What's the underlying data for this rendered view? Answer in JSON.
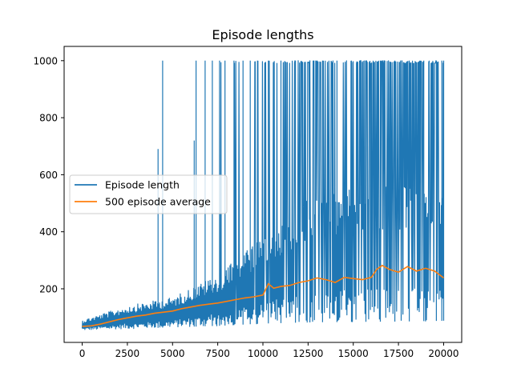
{
  "chart_data": {
    "type": "line",
    "title": "Episode lengths",
    "xlabel": "",
    "ylabel": "",
    "xlim": [
      -1000,
      21000
    ],
    "ylim": [
      12,
      1050
    ],
    "x_ticks": [
      0,
      2500,
      5000,
      7500,
      10000,
      12500,
      15000,
      17500,
      20000
    ],
    "y_ticks": [
      200,
      400,
      600,
      800,
      1000
    ],
    "grid": false,
    "legend_position": "center-left",
    "series": [
      {
        "name": "Episode length",
        "color": "#1f77b4",
        "episodes": 20000,
        "lower_envelope": [
          [
            0,
            55
          ],
          [
            2500,
            60
          ],
          [
            5000,
            65
          ],
          [
            7500,
            70
          ],
          [
            10000,
            78
          ],
          [
            12500,
            82
          ],
          [
            15000,
            84
          ],
          [
            17500,
            85
          ],
          [
            20000,
            88
          ]
        ],
        "upper_envelope": [
          [
            0,
            90
          ],
          [
            2500,
            140
          ],
          [
            5000,
            170
          ],
          [
            7500,
            250
          ],
          [
            10000,
            380
          ],
          [
            12500,
            520
          ],
          [
            15000,
            560
          ],
          [
            17500,
            560
          ],
          [
            20000,
            560
          ]
        ],
        "spikes": [
          [
            4200,
            690
          ],
          [
            4450,
            1000
          ],
          [
            6200,
            720
          ],
          [
            6300,
            1000
          ],
          [
            6800,
            1000
          ],
          [
            7200,
            1000
          ],
          [
            7600,
            1000
          ],
          [
            7900,
            1000
          ],
          [
            8400,
            1000
          ],
          [
            8900,
            1000
          ],
          [
            9300,
            1000
          ],
          [
            9700,
            1000
          ],
          [
            10300,
            1000
          ],
          [
            11000,
            1000
          ],
          [
            11800,
            1000
          ],
          [
            12600,
            1000
          ],
          [
            13300,
            1000
          ],
          [
            14100,
            1000
          ],
          [
            14900,
            1000
          ],
          [
            15700,
            1000
          ],
          [
            16500,
            1000
          ],
          [
            17300,
            1000
          ],
          [
            18100,
            1000
          ],
          [
            18900,
            1000
          ],
          [
            19600,
            1000
          ],
          [
            19900,
            1000
          ],
          [
            20000,
            1000
          ]
        ]
      },
      {
        "name": "500 episode average",
        "color": "#ff7f0e",
        "x": [
          0,
          500,
          1000,
          1500,
          2000,
          2500,
          3000,
          3500,
          4000,
          4500,
          5000,
          5500,
          6000,
          6500,
          7000,
          7500,
          8000,
          8500,
          9000,
          9500,
          10000,
          10300,
          10600,
          11000,
          11500,
          12000,
          12500,
          13000,
          13500,
          14000,
          14500,
          15000,
          15500,
          16000,
          16300,
          16600,
          17000,
          17500,
          18000,
          18500,
          19000,
          19500,
          20000
        ],
        "y": [
          68,
          70,
          76,
          84,
          92,
          98,
          104,
          108,
          114,
          118,
          122,
          130,
          136,
          142,
          146,
          150,
          156,
          162,
          168,
          172,
          178,
          218,
          202,
          208,
          212,
          222,
          228,
          238,
          232,
          222,
          240,
          236,
          232,
          240,
          268,
          282,
          268,
          258,
          278,
          262,
          272,
          262,
          238
        ]
      }
    ]
  }
}
